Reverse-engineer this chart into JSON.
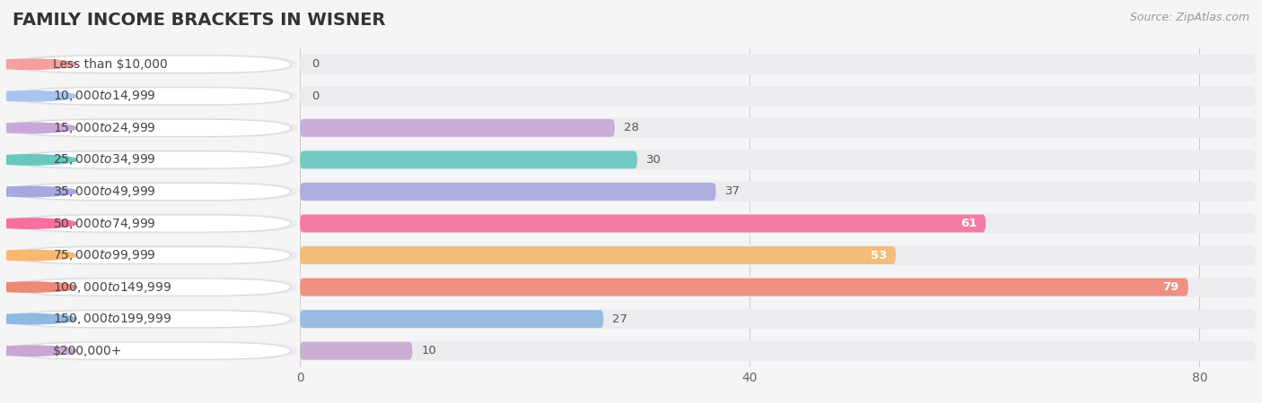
{
  "title": "FAMILY INCOME BRACKETS IN WISNER",
  "source": "Source: ZipAtlas.com",
  "categories": [
    "Less than $10,000",
    "$10,000 to $14,999",
    "$15,000 to $24,999",
    "$25,000 to $34,999",
    "$35,000 to $49,999",
    "$50,000 to $74,999",
    "$75,000 to $99,999",
    "$100,000 to $149,999",
    "$150,000 to $199,999",
    "$200,000+"
  ],
  "values": [
    0,
    0,
    28,
    30,
    37,
    61,
    53,
    79,
    27,
    10
  ],
  "bar_colors": [
    "#f4a0a0",
    "#a8c4f0",
    "#c8a8d8",
    "#68c8be",
    "#a8a8e0",
    "#f870a0",
    "#f8b870",
    "#f08878",
    "#90b8e0",
    "#c8a8d0"
  ],
  "xlim_max": 85,
  "xticks": [
    0,
    40,
    80
  ],
  "background_color": "#f5f5f5",
  "row_bg_color": "#ebebf0",
  "title_fontsize": 14,
  "label_fontsize": 10,
  "value_fontsize": 9.5,
  "value_inside_threshold": 50
}
